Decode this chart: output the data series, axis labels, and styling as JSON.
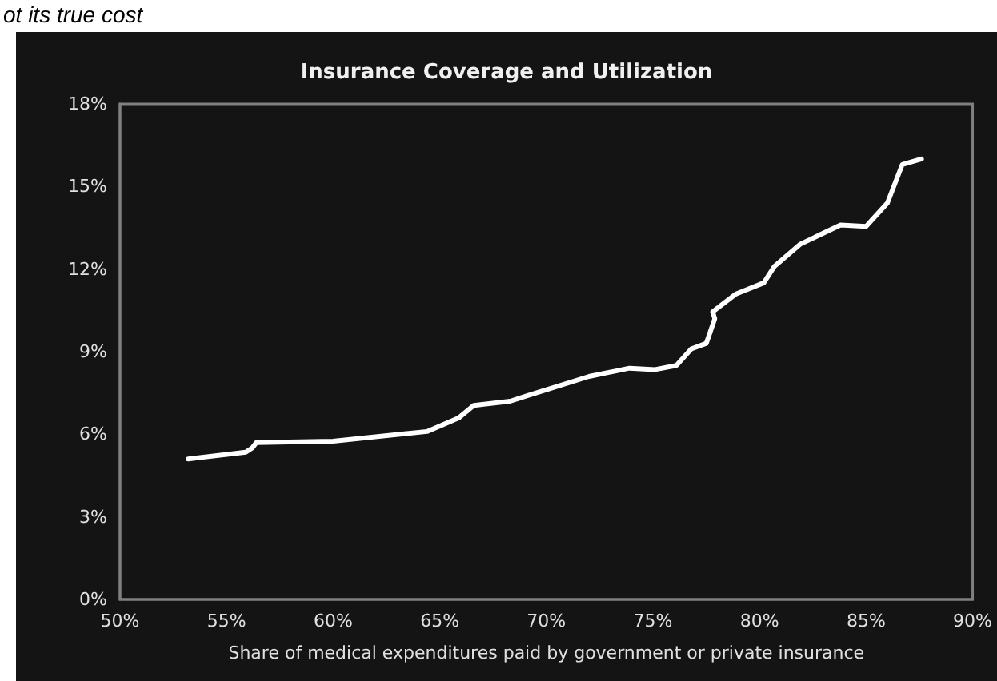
{
  "chart_data": {
    "type": "line",
    "title": "Insurance Coverage and Utilization",
    "xlabel": "Share of medical expenditures paid by government or private insurance",
    "annotations": [
      "ot its true cost"
    ],
    "x": [
      53.2,
      55.9,
      56.2,
      56.4,
      60.0,
      64.4,
      65.9,
      66.6,
      68.3,
      69.1,
      72.0,
      73.9,
      75.1,
      76.1,
      76.8,
      77.5,
      77.9,
      77.8,
      78.9,
      80.2,
      80.7,
      81.9,
      83.8,
      85.0,
      86.0,
      86.7,
      87.6
    ],
    "series": [
      {
        "color": "#ffffff",
        "values": [
          5.1,
          5.35,
          5.5,
          5.7,
          5.75,
          6.1,
          6.6,
          7.05,
          7.2,
          7.4,
          8.1,
          8.4,
          8.35,
          8.5,
          9.1,
          9.3,
          10.2,
          10.45,
          11.1,
          11.5,
          12.1,
          12.9,
          13.6,
          13.55,
          14.4,
          15.8,
          16.0
        ]
      }
    ],
    "xlim": [
      50,
      90
    ],
    "xticks": [
      {
        "value": 50,
        "label": "50%"
      },
      {
        "value": 55,
        "label": "55%"
      },
      {
        "value": 60,
        "label": "60%"
      },
      {
        "value": 65,
        "label": "65%"
      },
      {
        "value": 70,
        "label": "70%"
      },
      {
        "value": 75,
        "label": "75%"
      },
      {
        "value": 80,
        "label": "80%"
      },
      {
        "value": 85,
        "label": "85%"
      },
      {
        "value": 90,
        "label": "90%"
      }
    ],
    "ylim": [
      0,
      18
    ],
    "yticks": [
      {
        "value": 0,
        "label": "0%"
      },
      {
        "value": 3,
        "label": "3%"
      },
      {
        "value": 6,
        "label": "6%"
      },
      {
        "value": 9,
        "label": "9%"
      },
      {
        "value": 12,
        "label": "12%"
      },
      {
        "value": 15,
        "label": "15%"
      },
      {
        "value": 18,
        "label": "18%"
      }
    ],
    "grid": false,
    "marker": "none",
    "line_style": "solid"
  }
}
